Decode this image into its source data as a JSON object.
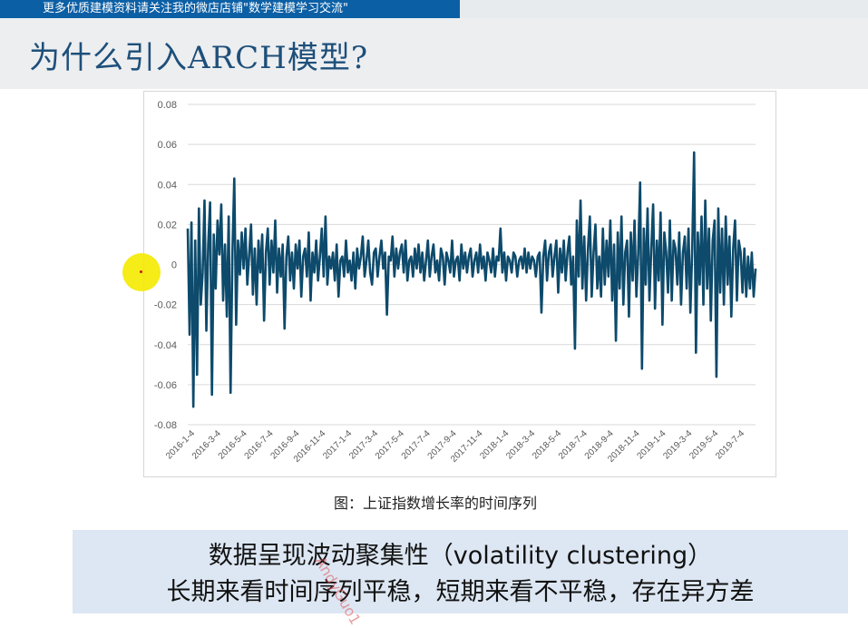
{
  "banner": {
    "text": "更多优质建模资料请关注我的微店店铺\"数学建模学习交流\""
  },
  "slide": {
    "title": "为什么引入ARCH模型?",
    "caption": "图：上证指数增长率的时间序列",
    "note_line1": "数据呈现波动聚集性（volatility clustering）",
    "note_line2": "长期来看时间序列平稳，短期来看不平稳，存在异方差",
    "watermark": "AndyGuo1"
  },
  "colors": {
    "line": "#0d4a6b",
    "banner": "#0b5fa5",
    "title": "#1e4f7a",
    "note_bg": "#dde7f3"
  },
  "chart_data": {
    "type": "line",
    "title": "",
    "xlabel": "",
    "ylabel": "",
    "ylim": [
      -0.08,
      0.08
    ],
    "yticks": [
      0.08,
      0.06,
      0.04,
      0.02,
      0,
      -0.02,
      -0.04,
      -0.06,
      -0.08
    ],
    "ytick_labels": [
      "0.08",
      "0.06",
      "0.04",
      "0.02",
      "0",
      "-0.02",
      "-0.04",
      "-0.06",
      "-0.08"
    ],
    "grid": true,
    "x_tick_labels": [
      "2016-1-4",
      "2016-3-4",
      "2016-5-4",
      "2016-7-4",
      "2016-9-4",
      "2016-11-4",
      "2017-1-4",
      "2017-3-4",
      "2017-5-4",
      "2017-7-4",
      "2017-9-4",
      "2017-11-4",
      "2018-1-4",
      "2018-3-4",
      "2018-5-4",
      "2018-7-4",
      "2018-9-4",
      "2018-11-4",
      "2019-1-4",
      "2019-3-4",
      "2019-5-4",
      "2019-7-4"
    ],
    "series": [
      {
        "values": [
          0.018,
          -0.035,
          0.021,
          -0.071,
          0.012,
          -0.055,
          0.028,
          -0.02,
          -0.004,
          0.032,
          -0.033,
          0.01,
          0.031,
          -0.065,
          0.015,
          -0.012,
          0.022,
          0.005,
          0.03,
          -0.018,
          0.01,
          -0.026,
          0.024,
          -0.064,
          0.006,
          0.043,
          -0.03,
          0.012,
          -0.005,
          0.016,
          -0.002,
          0.018,
          -0.01,
          0.005,
          0.02,
          -0.015,
          0.008,
          -0.02,
          0.012,
          -0.004,
          0.015,
          -0.028,
          0.006,
          0.018,
          -0.01,
          0.012,
          -0.004,
          0.022,
          -0.014,
          0.008,
          -0.006,
          0.01,
          -0.032,
          0.004,
          0.014,
          -0.008,
          0.006,
          -0.012,
          0.01,
          -0.002,
          0.012,
          -0.016,
          0.004,
          0.008,
          -0.006,
          0.016,
          -0.018,
          0.006,
          -0.004,
          0.012,
          -0.008,
          0.004,
          0.018,
          -0.006,
          0.024,
          -0.01,
          0.004,
          -0.002,
          0.006,
          -0.008,
          0.01,
          -0.016,
          0.002,
          0.004,
          -0.006,
          0.012,
          -0.004,
          0.002,
          -0.008,
          0.006,
          -0.012,
          0.008,
          -0.002,
          0.004,
          0.014,
          -0.006,
          0.002,
          0.012,
          -0.004,
          -0.01,
          0.006,
          0.008,
          -0.006,
          0.004,
          0.012,
          -0.002,
          0.006,
          -0.025,
          0.004,
          0.002,
          0.014,
          -0.006,
          0.008,
          -0.002,
          0.006,
          0.01,
          -0.004,
          0.012,
          -0.008,
          0.002,
          0.004,
          -0.006,
          0.008,
          -0.002,
          0.01,
          -0.004,
          0.006,
          -0.008,
          0.002,
          0.012,
          -0.006,
          0.004,
          0.01,
          -0.004,
          0.002,
          -0.008,
          0.008,
          0.004,
          -0.01,
          0.006,
          0.002,
          -0.004,
          0.012,
          -0.006,
          0.002,
          0.004,
          -0.008,
          0.01,
          -0.002,
          0.006,
          -0.004,
          0.004,
          0.008,
          -0.006,
          0.002,
          0.006,
          -0.004,
          0.01,
          -0.002,
          0.004,
          -0.008,
          0.006,
          0.002,
          -0.004,
          0.008,
          -0.006,
          0.004,
          0.002,
          0.018,
          -0.004,
          0.006,
          -0.008,
          0.004,
          0.002,
          -0.004,
          0.006,
          0.004,
          -0.006,
          0.002,
          0.004,
          -0.002,
          0.008,
          -0.004,
          0.006,
          -0.002,
          0.004,
          0.002,
          -0.006,
          0.004,
          0.006,
          -0.024,
          0.004,
          0.012,
          -0.008,
          0.006,
          0.01,
          -0.006,
          0.004,
          0.012,
          -0.014,
          0.008,
          -0.004,
          0.012,
          -0.008,
          0.006,
          0.014,
          -0.01,
          0.004,
          -0.042,
          0.022,
          -0.006,
          0.032,
          -0.012,
          0.014,
          -0.018,
          0.008,
          0.024,
          -0.016,
          0.006,
          0.02,
          -0.012,
          0.004,
          -0.016,
          0.018,
          -0.01,
          0.012,
          -0.006,
          0.022,
          -0.018,
          0.01,
          -0.038,
          0.016,
          -0.012,
          0.024,
          -0.02,
          0.006,
          0.012,
          -0.026,
          0.016,
          -0.008,
          0.022,
          -0.016,
          0.006,
          0.041,
          -0.052,
          0.018,
          -0.01,
          0.028,
          -0.018,
          0.008,
          0.03,
          -0.022,
          0.012,
          -0.008,
          0.026,
          -0.03,
          0.016,
          0.006,
          -0.014,
          0.022,
          -0.018,
          0.012,
          0.008,
          -0.01,
          0.016,
          -0.02,
          0.006,
          0.014,
          -0.012,
          0.018,
          -0.024,
          0.008,
          0.056,
          -0.044,
          0.016,
          -0.01,
          0.024,
          -0.02,
          0.032,
          -0.012,
          0.018,
          -0.028,
          0.012,
          0.022,
          -0.056,
          0.028,
          -0.014,
          0.018,
          -0.02,
          0.024,
          -0.01,
          0.014,
          -0.026,
          0.008,
          0.022,
          -0.018,
          0.012,
          0.006,
          -0.014,
          0.008,
          -0.016,
          0.004,
          -0.012,
          0.006,
          -0.016,
          -0.002
        ]
      }
    ]
  }
}
